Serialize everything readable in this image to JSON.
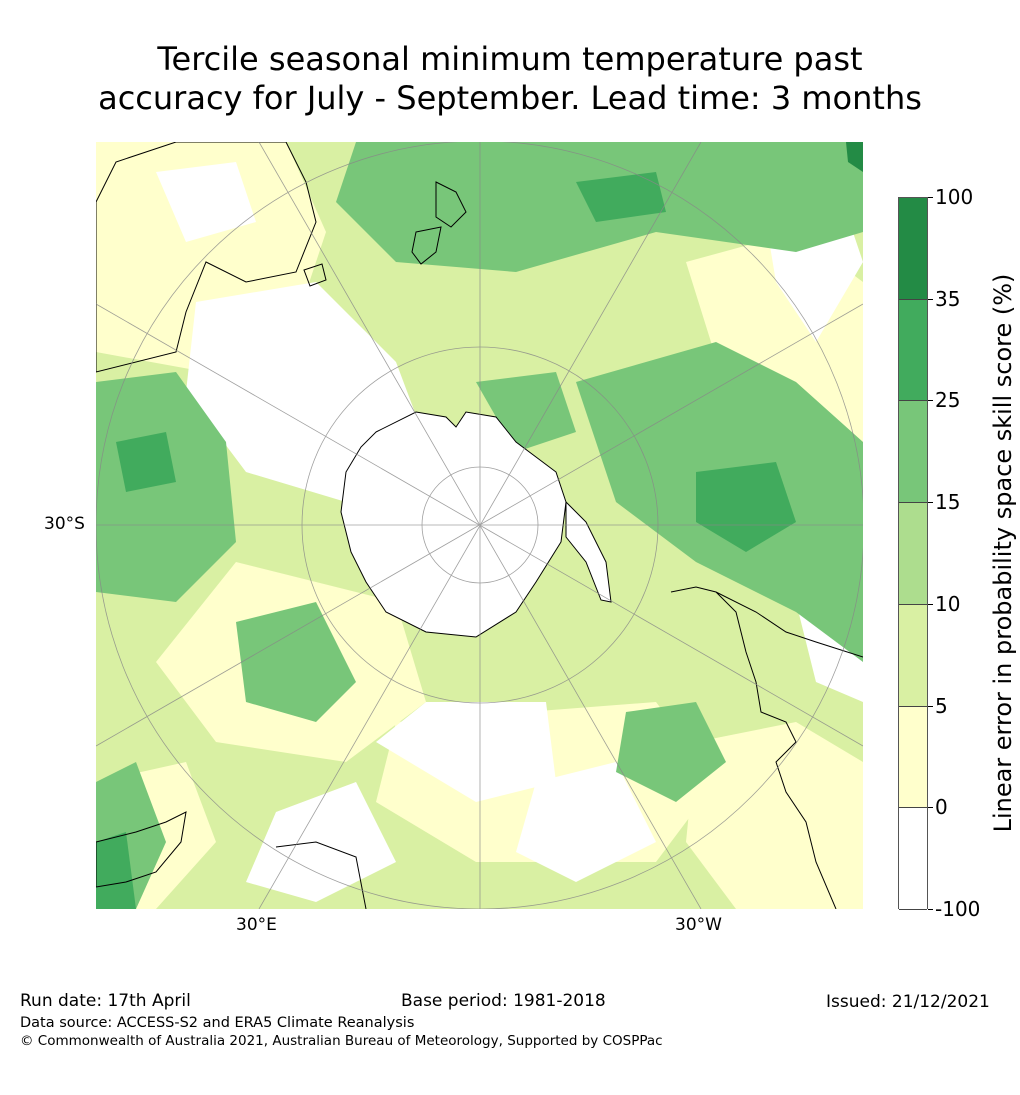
{
  "title": {
    "line1": "Tercile seasonal minimum temperature past",
    "line2": "accuracy for July - September. Lead time: 3 months"
  },
  "map": {
    "projection": "south-polar-stereographic",
    "lat_label": "30°S",
    "lon_label_left": "30°E",
    "lon_label_right": "30°W",
    "land_color": "#000000",
    "grid_color": "#888888"
  },
  "colorbar": {
    "label": "Linear error in probability space skill score (%)",
    "ticks": [
      "100",
      "35",
      "25",
      "15",
      "10",
      "5",
      "0",
      "-100"
    ],
    "bins": [
      {
        "range": "35 to 100",
        "color": "#238b45"
      },
      {
        "range": "25 to 35",
        "color": "#41ab5d"
      },
      {
        "range": "15 to 25",
        "color": "#78c679"
      },
      {
        "range": "10 to 15",
        "color": "#addd8e"
      },
      {
        "range": "5 to 10",
        "color": "#d9f0a3"
      },
      {
        "range": "0 to 5",
        "color": "#ffffcc"
      },
      {
        "range": "-100 to 0",
        "color": "#ffffff"
      }
    ]
  },
  "footer": {
    "run_date": "Run date: 17th April",
    "base_period": "Base period: 1981-2018",
    "issued": "Issued: 21/12/2021",
    "data_source": "Data source: ACCESS-S2 and ERA5 Climate Reanalysis",
    "copyright": "© Commonwealth of Australia 2021, Australian Bureau of Meteorology, Supported by COSPPac"
  }
}
